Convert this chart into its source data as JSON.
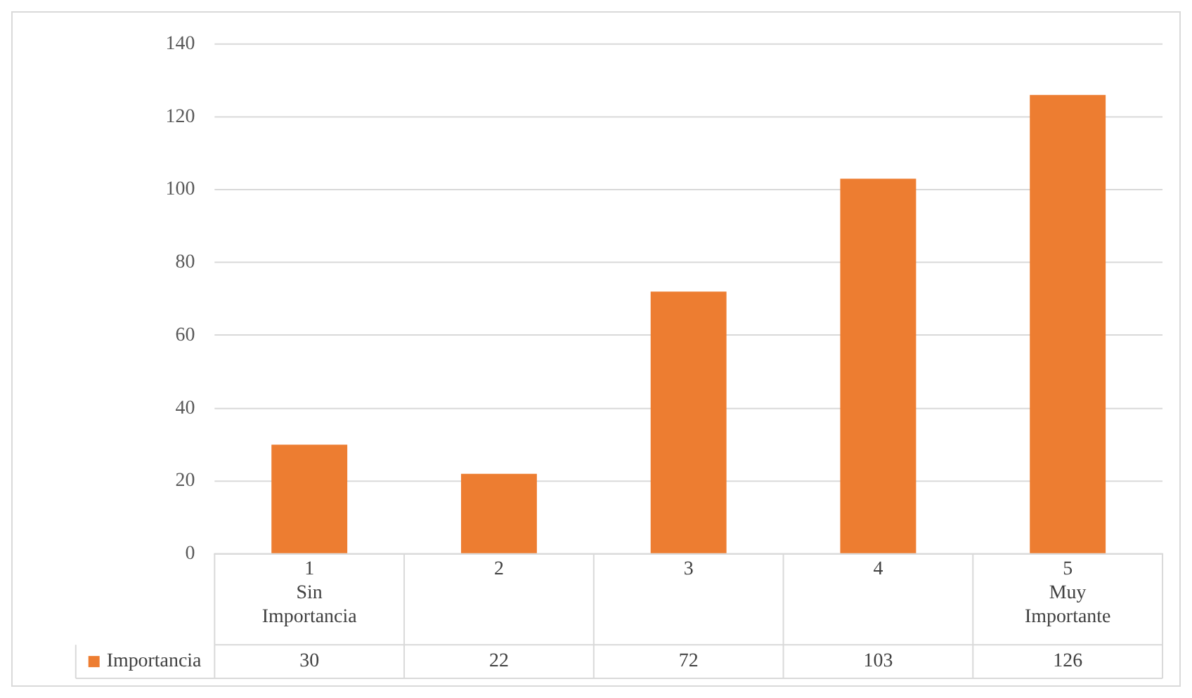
{
  "chart_data": {
    "type": "bar",
    "categories": [
      "1\nSin\nImportancia",
      "2",
      "3",
      "4",
      "5\nMuy\nImportante"
    ],
    "series": [
      {
        "name": "Importancia",
        "color": "#ed7d31",
        "values": [
          30,
          22,
          72,
          103,
          126
        ]
      }
    ],
    "ylim": [
      0,
      140
    ],
    "yticks": [
      0,
      20,
      40,
      60,
      80,
      100,
      120,
      140
    ],
    "grid": "y",
    "legend": "bottom left",
    "data_labels": true
  }
}
